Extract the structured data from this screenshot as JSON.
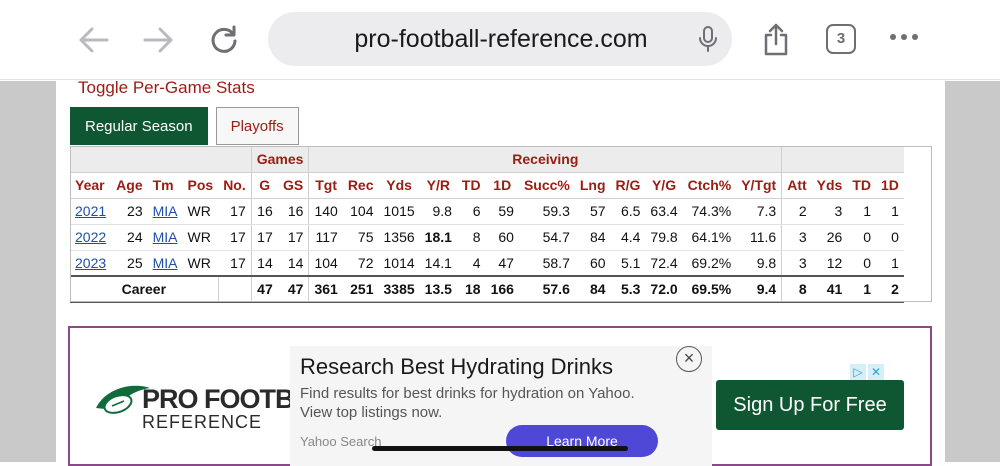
{
  "browser": {
    "url": "pro-football-reference.com",
    "tab_count": "3"
  },
  "page": {
    "toggle_label": "Toggle Per-Game Stats",
    "tabs": [
      {
        "label": "Regular Season",
        "active": true
      },
      {
        "label": "Playoffs",
        "active": false
      }
    ]
  },
  "table": {
    "over_headers": {
      "games": "Games",
      "receiving": "Receiving"
    },
    "columns": [
      "Year",
      "Age",
      "Tm",
      "Pos",
      "No.",
      "G",
      "GS",
      "Tgt",
      "Rec",
      "Yds",
      "Y/R",
      "TD",
      "1D",
      "Succ%",
      "Lng",
      "R/G",
      "Y/G",
      "Ctch%",
      "Y/Tgt",
      "Att",
      "Yds",
      "TD",
      "1D"
    ],
    "rows": [
      [
        "2021",
        "23",
        "MIA",
        "WR",
        "17",
        "16",
        "16",
        "140",
        "104",
        "1015",
        "9.8",
        "6",
        "59",
        "59.3",
        "57",
        "6.5",
        "63.4",
        "74.3%",
        "7.3",
        "2",
        "3",
        "1",
        "1"
      ],
      [
        "2022",
        "24",
        "MIA",
        "WR",
        "17",
        "17",
        "17",
        "117",
        "75",
        "1356",
        "18.1",
        "8",
        "60",
        "54.7",
        "84",
        "4.4",
        "79.8",
        "64.1%",
        "11.6",
        "3",
        "26",
        "0",
        "0"
      ],
      [
        "2023",
        "25",
        "MIA",
        "WR",
        "17",
        "14",
        "14",
        "104",
        "72",
        "1014",
        "14.1",
        "4",
        "47",
        "58.7",
        "60",
        "5.1",
        "72.4",
        "69.2%",
        "9.8",
        "3",
        "12",
        "0",
        "1"
      ]
    ],
    "career": [
      "Career",
      "",
      "",
      "",
      "",
      "47",
      "47",
      "361",
      "251",
      "3385",
      "13.5",
      "18",
      "166",
      "57.6",
      "84",
      "5.3",
      "72.0",
      "69.5%",
      "9.4",
      "8",
      "41",
      "1",
      "2"
    ]
  },
  "ad": {
    "logo_name": "PRO FOOTBA",
    "logo_sub": "REFERENCE",
    "title": "Research Best Hydrating Drinks",
    "description": "Find results for best drinks for hydration on Yahoo. View top listings now.",
    "source": "Yahoo Search",
    "cta": "Learn More",
    "signup": "Sign Up For Free"
  }
}
